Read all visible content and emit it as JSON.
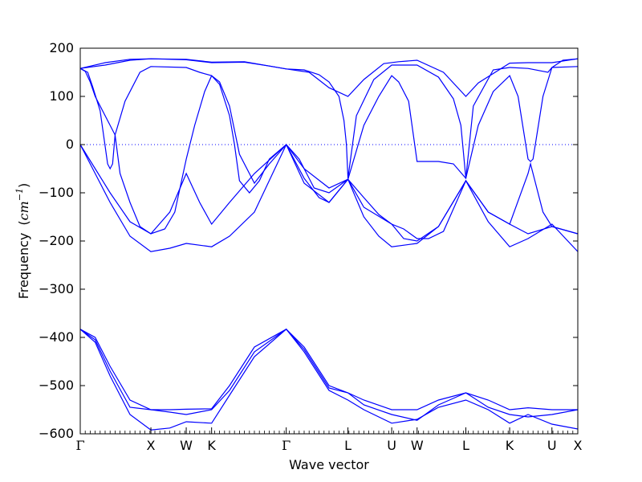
{
  "chart_data": {
    "type": "line",
    "xlabel": "Wave vector",
    "ylabel": {
      "text": "Frequency",
      "unit_open": "(",
      "unit": "cm",
      "exponent": "−1",
      "unit_close": ")"
    },
    "ylim": [
      -600,
      200
    ],
    "yticks": [
      {
        "v": 200,
        "label": "200"
      },
      {
        "v": 100,
        "label": "100"
      },
      {
        "v": 0,
        "label": "0"
      },
      {
        "v": -100,
        "label": "−100"
      },
      {
        "v": -200,
        "label": "−200"
      },
      {
        "v": -300,
        "label": "−300"
      },
      {
        "v": -400,
        "label": "−400"
      },
      {
        "v": -500,
        "label": "−500"
      },
      {
        "v": -600,
        "label": "−600"
      }
    ],
    "xlim": [
      0,
      1
    ],
    "kpoints": [
      {
        "x": 0.0,
        "label": "Γ"
      },
      {
        "x": 0.142,
        "label": "X"
      },
      {
        "x": 0.213,
        "label": "W"
      },
      {
        "x": 0.264,
        "label": "K"
      },
      {
        "x": 0.414,
        "label": "Γ"
      },
      {
        "x": 0.538,
        "label": "L"
      },
      {
        "x": 0.626,
        "label": "U"
      },
      {
        "x": 0.677,
        "label": "W"
      },
      {
        "x": 0.775,
        "label": "L"
      },
      {
        "x": 0.863,
        "label": "K"
      },
      {
        "x": 0.948,
        "label": "U"
      },
      {
        "x": 1.0,
        "label": "X"
      }
    ],
    "zero_line": {
      "y": 0,
      "style": "dotted"
    },
    "line_color": "#0000ff",
    "series": [
      {
        "points": [
          [
            0,
            158
          ],
          [
            0.05,
            170
          ],
          [
            0.1,
            177
          ],
          [
            0.142,
            178
          ],
          [
            0.18,
            177
          ],
          [
            0.213,
            176
          ],
          [
            0.264,
            170
          ],
          [
            0.33,
            171
          ],
          [
            0.38,
            163
          ],
          [
            0.414,
            157
          ],
          [
            0.46,
            150
          ],
          [
            0.5,
            118
          ],
          [
            0.538,
            100
          ],
          [
            0.57,
            135
          ],
          [
            0.61,
            168
          ],
          [
            0.64,
            172
          ],
          [
            0.677,
            175
          ],
          [
            0.73,
            150
          ],
          [
            0.775,
            100
          ],
          [
            0.8,
            128
          ],
          [
            0.863,
            169
          ],
          [
            0.9,
            170
          ],
          [
            0.948,
            170
          ],
          [
            1.0,
            178
          ]
        ]
      },
      {
        "points": [
          [
            0,
            158
          ],
          [
            0.05,
            165
          ],
          [
            0.1,
            175
          ],
          [
            0.142,
            178
          ],
          [
            0.213,
            177
          ],
          [
            0.264,
            171
          ],
          [
            0.33,
            172
          ],
          [
            0.38,
            163
          ],
          [
            0.414,
            157
          ],
          [
            0.45,
            155
          ],
          [
            0.48,
            145
          ],
          [
            0.5,
            130
          ],
          [
            0.52,
            100
          ],
          [
            0.53,
            50
          ],
          [
            0.535,
            0
          ],
          [
            0.538,
            -70
          ],
          [
            0.555,
            60
          ],
          [
            0.59,
            135
          ],
          [
            0.626,
            165
          ],
          [
            0.677,
            165
          ],
          [
            0.72,
            140
          ],
          [
            0.75,
            95
          ],
          [
            0.765,
            40
          ],
          [
            0.775,
            -70
          ],
          [
            0.79,
            80
          ],
          [
            0.83,
            155
          ],
          [
            0.863,
            160
          ],
          [
            0.9,
            158
          ],
          [
            0.94,
            150
          ],
          [
            0.948,
            160
          ],
          [
            1.0,
            162
          ]
        ]
      },
      {
        "points": [
          [
            0,
            158
          ],
          [
            0.015,
            150
          ],
          [
            0.025,
            120
          ],
          [
            0.04,
            70
          ],
          [
            0.055,
            -40
          ],
          [
            0.06,
            -50
          ],
          [
            0.065,
            -40
          ],
          [
            0.07,
            20
          ],
          [
            0.09,
            90
          ],
          [
            0.12,
            150
          ],
          [
            0.142,
            162
          ],
          [
            0.213,
            160
          ],
          [
            0.24,
            150
          ],
          [
            0.264,
            143
          ],
          [
            0.28,
            125
          ],
          [
            0.3,
            60
          ],
          [
            0.31,
            0
          ],
          [
            0.32,
            -75
          ],
          [
            0.34,
            -100
          ],
          [
            0.36,
            -75
          ],
          [
            0.38,
            -30
          ],
          [
            0.414,
            0
          ],
          [
            0.44,
            -30
          ],
          [
            0.47,
            -90
          ],
          [
            0.5,
            -100
          ],
          [
            0.538,
            -72
          ],
          [
            0.57,
            -110
          ],
          [
            0.6,
            -145
          ],
          [
            0.626,
            -165
          ],
          [
            0.65,
            -175
          ],
          [
            0.677,
            -195
          ],
          [
            0.7,
            -195
          ],
          [
            0.73,
            -180
          ],
          [
            0.775,
            -75
          ],
          [
            0.82,
            -140
          ],
          [
            0.863,
            -165
          ],
          [
            0.9,
            -60
          ],
          [
            0.905,
            -40
          ],
          [
            0.91,
            -60
          ],
          [
            0.93,
            -140
          ],
          [
            0.948,
            -170
          ],
          [
            1.0,
            -185
          ]
        ]
      },
      {
        "points": [
          [
            0,
            158
          ],
          [
            0.01,
            152
          ],
          [
            0.02,
            130
          ],
          [
            0.03,
            100
          ],
          [
            0.05,
            60
          ],
          [
            0.07,
            20
          ],
          [
            0.08,
            -60
          ],
          [
            0.1,
            -120
          ],
          [
            0.12,
            -170
          ],
          [
            0.142,
            -185
          ],
          [
            0.17,
            -175
          ],
          [
            0.19,
            -140
          ],
          [
            0.213,
            -30
          ],
          [
            0.23,
            40
          ],
          [
            0.25,
            110
          ],
          [
            0.264,
            143
          ],
          [
            0.28,
            130
          ],
          [
            0.3,
            80
          ],
          [
            0.31,
            30
          ],
          [
            0.32,
            -20
          ],
          [
            0.35,
            -80
          ],
          [
            0.38,
            -40
          ],
          [
            0.414,
            0
          ],
          [
            0.45,
            -70
          ],
          [
            0.48,
            -110
          ],
          [
            0.5,
            -120
          ],
          [
            0.538,
            -72
          ],
          [
            0.57,
            40
          ],
          [
            0.6,
            100
          ],
          [
            0.626,
            143
          ],
          [
            0.64,
            130
          ],
          [
            0.66,
            90
          ],
          [
            0.677,
            -35
          ],
          [
            0.72,
            -35
          ],
          [
            0.75,
            -40
          ],
          [
            0.775,
            -70
          ],
          [
            0.8,
            40
          ],
          [
            0.83,
            110
          ],
          [
            0.863,
            143
          ],
          [
            0.88,
            100
          ],
          [
            0.9,
            -30
          ],
          [
            0.905,
            -35
          ],
          [
            0.91,
            -30
          ],
          [
            0.93,
            100
          ],
          [
            0.948,
            160
          ],
          [
            0.97,
            175
          ],
          [
            1.0,
            178
          ]
        ]
      },
      {
        "points": [
          [
            0,
            0
          ],
          [
            0.03,
            -50
          ],
          [
            0.06,
            -100
          ],
          [
            0.1,
            -160
          ],
          [
            0.142,
            -185
          ],
          [
            0.18,
            -140
          ],
          [
            0.213,
            -60
          ],
          [
            0.24,
            -120
          ],
          [
            0.264,
            -165
          ],
          [
            0.3,
            -120
          ],
          [
            0.35,
            -60
          ],
          [
            0.414,
            0
          ],
          [
            0.45,
            -50
          ],
          [
            0.5,
            -90
          ],
          [
            0.538,
            -72
          ],
          [
            0.57,
            -130
          ],
          [
            0.626,
            -165
          ],
          [
            0.65,
            -195
          ],
          [
            0.677,
            -200
          ],
          [
            0.72,
            -170
          ],
          [
            0.775,
            -75
          ],
          [
            0.82,
            -140
          ],
          [
            0.863,
            -165
          ],
          [
            0.9,
            -185
          ],
          [
            0.948,
            -170
          ],
          [
            1.0,
            -185
          ]
        ]
      },
      {
        "points": [
          [
            0,
            0
          ],
          [
            0.03,
            -60
          ],
          [
            0.06,
            -120
          ],
          [
            0.1,
            -190
          ],
          [
            0.142,
            -222
          ],
          [
            0.18,
            -215
          ],
          [
            0.213,
            -205
          ],
          [
            0.264,
            -212
          ],
          [
            0.3,
            -190
          ],
          [
            0.35,
            -140
          ],
          [
            0.414,
            0
          ],
          [
            0.45,
            -80
          ],
          [
            0.5,
            -120
          ],
          [
            0.538,
            -72
          ],
          [
            0.57,
            -150
          ],
          [
            0.6,
            -190
          ],
          [
            0.626,
            -212
          ],
          [
            0.677,
            -205
          ],
          [
            0.72,
            -170
          ],
          [
            0.775,
            -75
          ],
          [
            0.82,
            -160
          ],
          [
            0.863,
            -212
          ],
          [
            0.9,
            -195
          ],
          [
            0.948,
            -165
          ],
          [
            1.0,
            -222
          ]
        ]
      },
      {
        "points": [
          [
            0,
            -383
          ],
          [
            0.03,
            -400
          ],
          [
            0.06,
            -460
          ],
          [
            0.1,
            -530
          ],
          [
            0.142,
            -550
          ],
          [
            0.18,
            -550
          ],
          [
            0.213,
            -549
          ],
          [
            0.264,
            -548
          ],
          [
            0.3,
            -500
          ],
          [
            0.35,
            -420
          ],
          [
            0.414,
            -383
          ],
          [
            0.45,
            -420
          ],
          [
            0.5,
            -500
          ],
          [
            0.538,
            -515
          ],
          [
            0.57,
            -530
          ],
          [
            0.626,
            -550
          ],
          [
            0.677,
            -550
          ],
          [
            0.72,
            -530
          ],
          [
            0.775,
            -515
          ],
          [
            0.82,
            -530
          ],
          [
            0.863,
            -550
          ],
          [
            0.9,
            -546
          ],
          [
            0.948,
            -550
          ],
          [
            1.0,
            -550
          ]
        ]
      },
      {
        "points": [
          [
            0,
            -383
          ],
          [
            0.03,
            -410
          ],
          [
            0.06,
            -480
          ],
          [
            0.1,
            -560
          ],
          [
            0.142,
            -592
          ],
          [
            0.18,
            -588
          ],
          [
            0.213,
            -575
          ],
          [
            0.264,
            -578
          ],
          [
            0.3,
            -520
          ],
          [
            0.35,
            -440
          ],
          [
            0.414,
            -383
          ],
          [
            0.45,
            -430
          ],
          [
            0.5,
            -510
          ],
          [
            0.538,
            -530
          ],
          [
            0.57,
            -550
          ],
          [
            0.626,
            -578
          ],
          [
            0.677,
            -570
          ],
          [
            0.72,
            -545
          ],
          [
            0.775,
            -530
          ],
          [
            0.82,
            -550
          ],
          [
            0.863,
            -578
          ],
          [
            0.9,
            -560
          ],
          [
            0.948,
            -580
          ],
          [
            1.0,
            -590
          ]
        ]
      },
      {
        "points": [
          [
            0,
            -383
          ],
          [
            0.03,
            -405
          ],
          [
            0.06,
            -470
          ],
          [
            0.1,
            -545
          ],
          [
            0.142,
            -550
          ],
          [
            0.18,
            -555
          ],
          [
            0.213,
            -560
          ],
          [
            0.264,
            -550
          ],
          [
            0.3,
            -510
          ],
          [
            0.35,
            -430
          ],
          [
            0.414,
            -383
          ],
          [
            0.45,
            -425
          ],
          [
            0.5,
            -505
          ],
          [
            0.538,
            -515
          ],
          [
            0.57,
            -540
          ],
          [
            0.626,
            -560
          ],
          [
            0.677,
            -572
          ],
          [
            0.72,
            -540
          ],
          [
            0.775,
            -515
          ],
          [
            0.82,
            -545
          ],
          [
            0.863,
            -560
          ],
          [
            0.9,
            -565
          ],
          [
            0.948,
            -560
          ],
          [
            1.0,
            -550
          ]
        ]
      }
    ]
  }
}
